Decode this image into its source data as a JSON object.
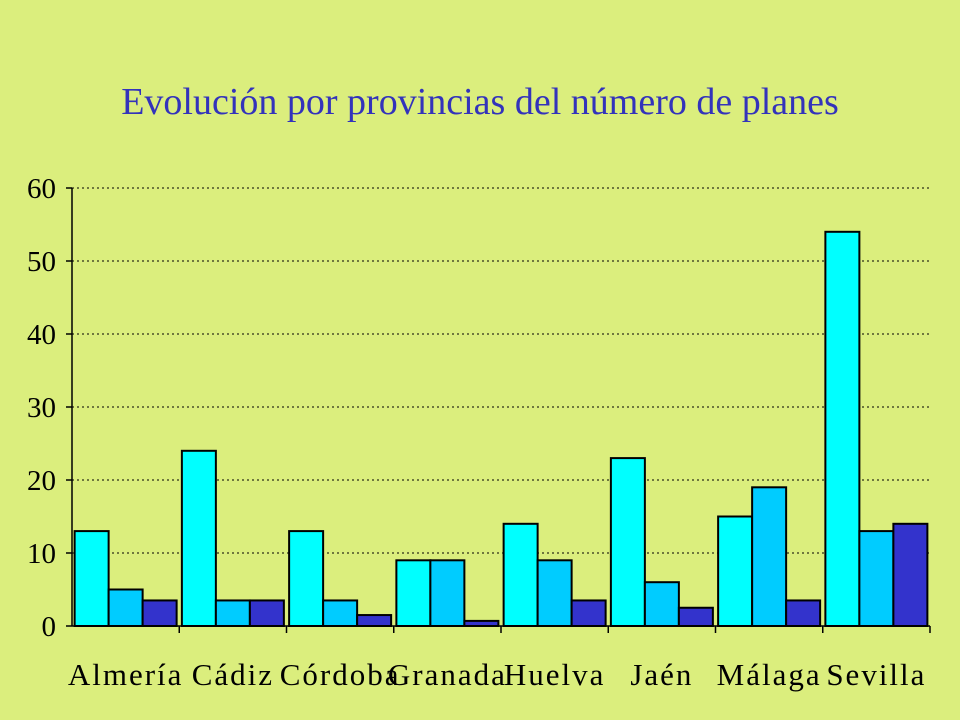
{
  "chart_data": {
    "type": "bar",
    "title": "Evolución por provincias del número de planes",
    "xlabel": "",
    "ylabel": "",
    "ylim": [
      0,
      60
    ],
    "yticks": [
      "0",
      "10",
      "20",
      "30",
      "40",
      "50",
      "60"
    ],
    "grid": true,
    "categories": [
      "Almería",
      "Cádiz",
      "Córdoba",
      "Granada",
      "Huelva",
      "Jaén",
      "Málaga",
      "Sevilla"
    ],
    "series": [
      {
        "color": "#00ffff",
        "values": [
          13,
          24,
          13,
          9,
          14,
          23,
          15,
          54
        ]
      },
      {
        "color": "#00ccff",
        "values": [
          5,
          3.5,
          3.5,
          9,
          9,
          6,
          19,
          13
        ]
      },
      {
        "color": "#3333cc",
        "values": [
          3.5,
          3.5,
          1.5,
          0.7,
          3.5,
          2.5,
          3.5,
          14
        ]
      }
    ]
  }
}
